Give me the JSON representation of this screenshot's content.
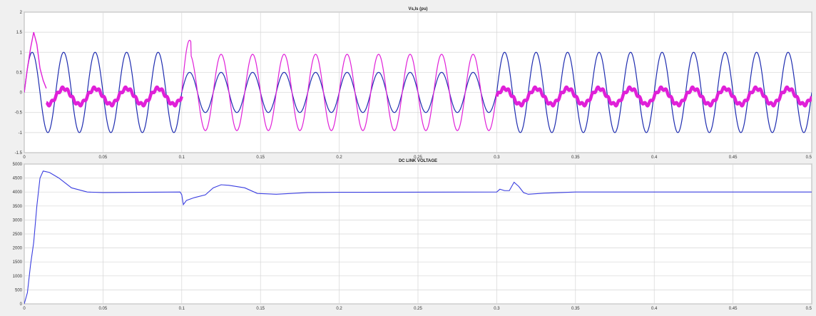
{
  "chart_data": [
    {
      "type": "line",
      "title": "Vs,Is (pu)",
      "xlim": [
        0,
        0.5
      ],
      "ylim": [
        -1.5,
        2
      ],
      "x_ticks": [
        "0",
        "0.05",
        "0.1",
        "0.15",
        "0.2",
        "0.25",
        "0.3",
        "0.35",
        "0.4",
        "0.45",
        "0.5"
      ],
      "y_ticks": [
        "2",
        "1.5",
        "1",
        "0.5",
        "0",
        "-0.5",
        "-1",
        "-1.5"
      ],
      "grid": true,
      "series": [
        {
          "color": "#1f2db0",
          "frequency_hz": 50,
          "segments": [
            {
              "x_start": 0,
              "x_end": 0.1,
              "amplitude": 1.0
            },
            {
              "x_start": 0.1,
              "x_end": 0.3,
              "amplitude": 0.5
            },
            {
              "x_start": 0.3,
              "x_end": 0.5,
              "amplitude": 1.0
            }
          ]
        },
        {
          "color": "#e020d8",
          "frequency_hz": 50,
          "transient_points": [
            [
              0,
              0
            ],
            [
              0.002,
              0.6
            ],
            [
              0.004,
              1.1
            ],
            [
              0.006,
              1.5
            ],
            [
              0.008,
              1.2
            ],
            [
              0.01,
              0.6
            ],
            [
              0.012,
              0.3
            ],
            [
              0.014,
              0.1
            ]
          ],
          "segments": [
            {
              "x_start": 0.014,
              "x_end": 0.1,
              "amplitude": 0.2,
              "offset": -0.1,
              "thick": true
            },
            {
              "x_start": 0.1,
              "x_end": 0.3,
              "amplitude": 0.95,
              "peak_start": 1.3,
              "peak_min": -1.15
            },
            {
              "x_start": 0.3,
              "x_end": 0.5,
              "amplitude": 0.2,
              "offset": -0.1,
              "thick": true
            }
          ]
        }
      ]
    },
    {
      "type": "line",
      "title": "DC LINK VOLTAGE",
      "xlim": [
        0,
        0.5
      ],
      "ylim": [
        0,
        5000
      ],
      "x_ticks": [
        "0",
        "0.05",
        "0.1",
        "0.15",
        "0.2",
        "0.25",
        "0.3",
        "0.35",
        "0.4",
        "0.45",
        "0.5"
      ],
      "y_ticks": [
        "5000",
        "4500",
        "4000",
        "3500",
        "3000",
        "2500",
        "2000",
        "1500",
        "1000",
        "500",
        "0"
      ],
      "grid": true,
      "series": [
        {
          "color": "#3a3ee0",
          "points": [
            [
              0,
              0
            ],
            [
              0.002,
              400
            ],
            [
              0.004,
              1400
            ],
            [
              0.006,
              2200
            ],
            [
              0.008,
              3500
            ],
            [
              0.01,
              4500
            ],
            [
              0.012,
              4750
            ],
            [
              0.016,
              4700
            ],
            [
              0.022,
              4500
            ],
            [
              0.03,
              4150
            ],
            [
              0.04,
              4000
            ],
            [
              0.05,
              3980
            ],
            [
              0.099,
              4000
            ],
            [
              0.1,
              3900
            ],
            [
              0.101,
              3550
            ],
            [
              0.103,
              3700
            ],
            [
              0.108,
              3800
            ],
            [
              0.115,
              3900
            ],
            [
              0.12,
              4150
            ],
            [
              0.125,
              4260
            ],
            [
              0.13,
              4240
            ],
            [
              0.14,
              4150
            ],
            [
              0.148,
              3950
            ],
            [
              0.16,
              3920
            ],
            [
              0.18,
              3980
            ],
            [
              0.2,
              3990
            ],
            [
              0.3,
              4000
            ],
            [
              0.302,
              4100
            ],
            [
              0.305,
              4050
            ],
            [
              0.308,
              4050
            ],
            [
              0.311,
              4350
            ],
            [
              0.314,
              4200
            ],
            [
              0.317,
              3980
            ],
            [
              0.32,
              3920
            ],
            [
              0.33,
              3960
            ],
            [
              0.35,
              4000
            ],
            [
              0.5,
              4000
            ]
          ]
        }
      ]
    }
  ]
}
